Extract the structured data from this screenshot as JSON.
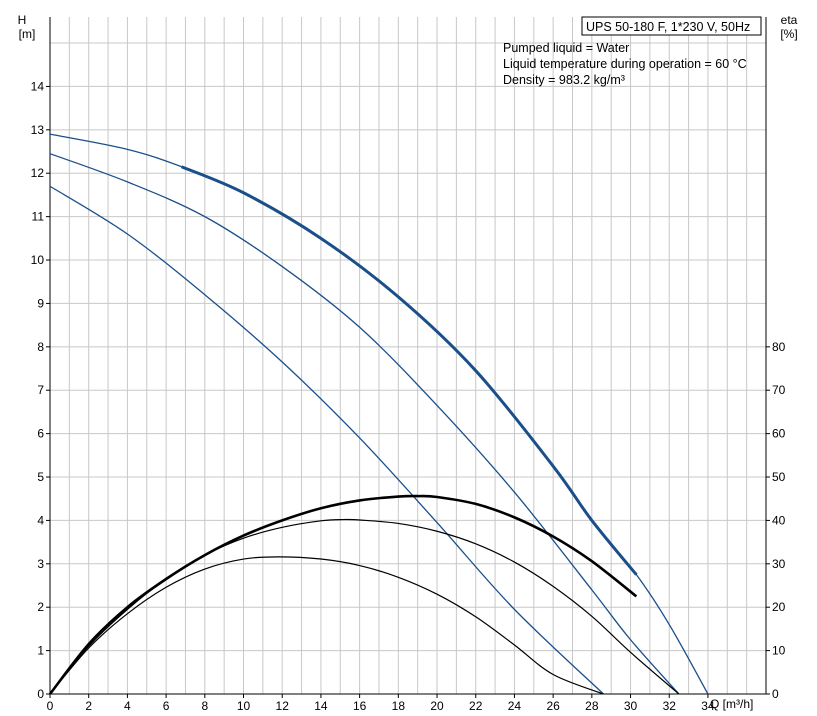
{
  "chart_data": {
    "type": "line",
    "title": "UPS 50-180 F, 1*230 V, 50Hz",
    "annotations": [
      "Pumped liquid = Water",
      "Liquid temperature during operation = 60 °C",
      "Density = 983.2 kg/m³"
    ],
    "xlabel": "Q [m³/h]",
    "ylabel_left": {
      "name": "H",
      "unit": "[m]"
    },
    "ylabel_right": {
      "name": "eta",
      "unit": "[%]"
    },
    "xlim": [
      0,
      37
    ],
    "ylim_left": [
      0,
      15.6
    ],
    "ylim_right": [
      0,
      80
    ],
    "x_ticks": [
      0,
      2,
      4,
      6,
      8,
      10,
      12,
      14,
      16,
      18,
      20,
      22,
      24,
      26,
      28,
      30,
      32,
      34
    ],
    "y_ticks_left": [
      0,
      1,
      2,
      3,
      4,
      5,
      6,
      7,
      8,
      9,
      10,
      11,
      12,
      13,
      14
    ],
    "y_ticks_right": [
      0,
      10,
      20,
      30,
      40,
      50,
      60,
      70,
      80
    ],
    "grid": true,
    "colors": {
      "head": "#1a4f8a",
      "eta": "#000000"
    },
    "head_series": [
      {
        "x": [
          0,
          4,
          6.8,
          10,
          14,
          18,
          22,
          26,
          28,
          30.3,
          32,
          34
        ],
        "y": [
          12.9,
          12.55,
          12.15,
          11.55,
          10.5,
          9.15,
          7.45,
          5.25,
          4.0,
          2.75,
          1.6,
          0
        ],
        "bold_range": [
          6.8,
          30.3
        ]
      },
      {
        "x": [
          0,
          4,
          8,
          12,
          16,
          20,
          24,
          28,
          30,
          32.5
        ],
        "y": [
          12.45,
          11.8,
          11.0,
          9.85,
          8.45,
          6.65,
          4.65,
          2.4,
          1.25,
          0
        ]
      },
      {
        "x": [
          0,
          4,
          8,
          12,
          16,
          20,
          24,
          28.6
        ],
        "y": [
          11.7,
          10.6,
          9.2,
          7.65,
          5.9,
          3.95,
          1.95,
          0
        ]
      }
    ],
    "eta_series": [
      {
        "x": [
          0,
          2,
          4,
          6,
          8,
          10,
          12,
          14,
          16,
          18,
          19,
          20,
          22,
          24,
          26,
          28,
          30.3
        ],
        "y": [
          0,
          11.5,
          20,
          26.5,
          32,
          36.5,
          40,
          42.8,
          44.6,
          45.5,
          45.6,
          45.4,
          43.8,
          40.7,
          36.3,
          30.6,
          22.5
        ],
        "bold": true
      },
      {
        "x": [
          0,
          2,
          4,
          6,
          8,
          10,
          12,
          14,
          15.2,
          16,
          18,
          20,
          22,
          24,
          26,
          28,
          30,
          32.5
        ],
        "y": [
          0,
          11,
          19.5,
          26.5,
          32,
          35.9,
          38.4,
          39.9,
          40.2,
          40.1,
          39.3,
          37.5,
          34.6,
          30.4,
          24.8,
          17.9,
          9.6,
          0
        ]
      },
      {
        "x": [
          0,
          2,
          4,
          6,
          8,
          10,
          11.8,
          14,
          16,
          18,
          20,
          22,
          24,
          26,
          28.6
        ],
        "y": [
          0,
          10.6,
          18.5,
          24.6,
          28.8,
          31.1,
          31.6,
          31.1,
          29.6,
          26.9,
          23.0,
          17.8,
          11.3,
          4.5,
          0
        ]
      }
    ]
  }
}
